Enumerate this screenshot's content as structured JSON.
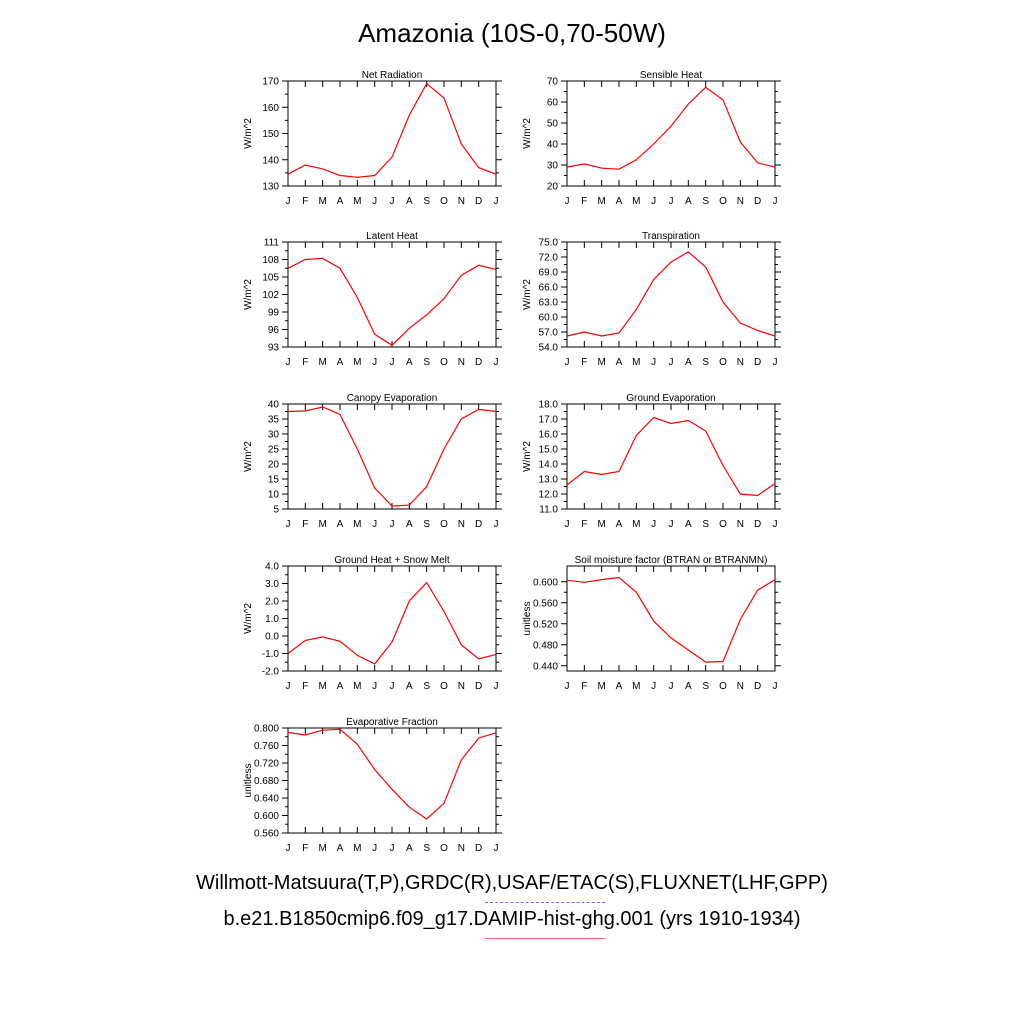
{
  "title": "Amazonia (10S-0,70-50W)",
  "legend": [
    {
      "text": "Willmott-Matsuura(T,P),GRDC(R),USAF/ETAC(S),FLUXNET(LHF,GPP)",
      "color": "#6a6aff",
      "style": "dashed"
    },
    {
      "text": "b.e21.B1850cmip6.f09_g17.DAMIP-hist-ghg.001 (yrs 1910-1934)",
      "color": "#ff0000",
      "style": "solid"
    }
  ],
  "series_color": "#ff0000",
  "chart_data": [
    {
      "type": "line",
      "title": "Net Radiation",
      "ylabel": "W/m^2",
      "categories": [
        "J",
        "F",
        "M",
        "A",
        "M",
        "J",
        "J",
        "A",
        "S",
        "O",
        "N",
        "D",
        "J"
      ],
      "ylim": [
        130,
        170
      ],
      "yticks": [
        "130",
        "140",
        "150",
        "160",
        "170"
      ],
      "values": [
        134.5,
        138,
        136.5,
        134,
        133.3,
        134,
        141,
        157,
        169,
        163.5,
        146,
        137,
        134.5
      ]
    },
    {
      "type": "line",
      "title": "Sensible Heat",
      "ylabel": "W/m^2",
      "categories": [
        "J",
        "F",
        "M",
        "A",
        "M",
        "J",
        "J",
        "A",
        "S",
        "O",
        "N",
        "D",
        "J"
      ],
      "ylim": [
        20,
        70
      ],
      "yticks": [
        "20",
        "30",
        "40",
        "50",
        "60",
        "70"
      ],
      "values": [
        29,
        30.5,
        28.5,
        28,
        32.5,
        40,
        48.5,
        59,
        67,
        61,
        41,
        31,
        29
      ]
    },
    {
      "type": "line",
      "title": "Latent Heat",
      "ylabel": "W/m^2",
      "categories": [
        "J",
        "F",
        "M",
        "A",
        "M",
        "J",
        "J",
        "A",
        "S",
        "O",
        "N",
        "D",
        "J"
      ],
      "ylim": [
        93,
        111
      ],
      "yticks": [
        "93",
        "96",
        "99",
        "102",
        "105",
        "108",
        "111"
      ],
      "values": [
        106.5,
        108,
        108.2,
        106.5,
        101.5,
        95.2,
        93.3,
        96.2,
        98.5,
        101.3,
        105.3,
        107,
        106.3
      ]
    },
    {
      "type": "line",
      "title": "Transpiration",
      "ylabel": "W/m^2",
      "categories": [
        "J",
        "F",
        "M",
        "A",
        "M",
        "J",
        "J",
        "A",
        "S",
        "O",
        "N",
        "D",
        "J"
      ],
      "ylim": [
        54,
        75
      ],
      "yticks": [
        "54.0",
        "57.0",
        "60.0",
        "63.0",
        "66.0",
        "69.0",
        "72.0",
        "75.0"
      ],
      "values": [
        56.2,
        57,
        56.2,
        56.8,
        61.5,
        67.5,
        71,
        73,
        70,
        63,
        58.8,
        57.3,
        56.2
      ]
    },
    {
      "type": "line",
      "title": "Canopy Evaporation",
      "ylabel": "W/m^2",
      "categories": [
        "J",
        "F",
        "M",
        "A",
        "M",
        "J",
        "J",
        "A",
        "S",
        "O",
        "N",
        "D",
        "J"
      ],
      "ylim": [
        5,
        40
      ],
      "yticks": [
        "5",
        "10",
        "15",
        "20",
        "25",
        "30",
        "35",
        "40"
      ],
      "values": [
        37.5,
        37.7,
        39,
        36.5,
        25,
        12,
        6,
        6.3,
        12.5,
        25,
        35,
        38.2,
        37.5
      ]
    },
    {
      "type": "line",
      "title": "Ground Evaporation",
      "ylabel": "W/m^2",
      "categories": [
        "J",
        "F",
        "M",
        "A",
        "M",
        "J",
        "J",
        "A",
        "S",
        "O",
        "N",
        "D",
        "J"
      ],
      "ylim": [
        11,
        18
      ],
      "yticks": [
        "11.0",
        "12.0",
        "13.0",
        "14.0",
        "15.0",
        "16.0",
        "17.0",
        "18.0"
      ],
      "values": [
        12.6,
        13.5,
        13.3,
        13.5,
        15.9,
        17.1,
        16.7,
        16.9,
        16.2,
        13.9,
        12,
        11.9,
        12.7
      ]
    },
    {
      "type": "line",
      "title": "Ground Heat + Snow Melt",
      "ylabel": "W/m^2",
      "categories": [
        "J",
        "F",
        "M",
        "A",
        "M",
        "J",
        "J",
        "A",
        "S",
        "O",
        "N",
        "D",
        "J"
      ],
      "ylim": [
        -2,
        4
      ],
      "yticks": [
        "-2.0",
        "-1.0",
        "0.0",
        "1.0",
        "2.0",
        "3.0",
        "4.0"
      ],
      "values": [
        -1,
        -0.25,
        -0.05,
        -0.3,
        -1.1,
        -1.6,
        -0.35,
        2,
        3.05,
        1.4,
        -0.5,
        -1.3,
        -1.05
      ]
    },
    {
      "type": "line",
      "title": "Soil moisture factor (BTRAN or BTRANMN)",
      "ylabel": "unitless",
      "categories": [
        "J",
        "F",
        "M",
        "A",
        "M",
        "J",
        "J",
        "A",
        "S",
        "O",
        "N",
        "D",
        "J"
      ],
      "ylim": [
        0.43,
        0.63
      ],
      "yticks": [
        "0.440",
        "0.480",
        "0.520",
        "0.560",
        "0.600"
      ],
      "values": [
        0.603,
        0.599,
        0.604,
        0.608,
        0.58,
        0.525,
        0.493,
        0.47,
        0.447,
        0.448,
        0.528,
        0.584,
        0.604
      ]
    },
    {
      "type": "line",
      "title": "Evaporative Fraction",
      "ylabel": "unitless",
      "categories": [
        "J",
        "F",
        "M",
        "A",
        "M",
        "J",
        "J",
        "A",
        "S",
        "O",
        "N",
        "D",
        "J"
      ],
      "ylim": [
        0.56,
        0.8
      ],
      "yticks": [
        "0.560",
        "0.600",
        "0.640",
        "0.680",
        "0.720",
        "0.760",
        "0.800"
      ],
      "values": [
        0.79,
        0.784,
        0.795,
        0.797,
        0.763,
        0.705,
        0.66,
        0.619,
        0.592,
        0.628,
        0.727,
        0.777,
        0.789
      ]
    }
  ]
}
